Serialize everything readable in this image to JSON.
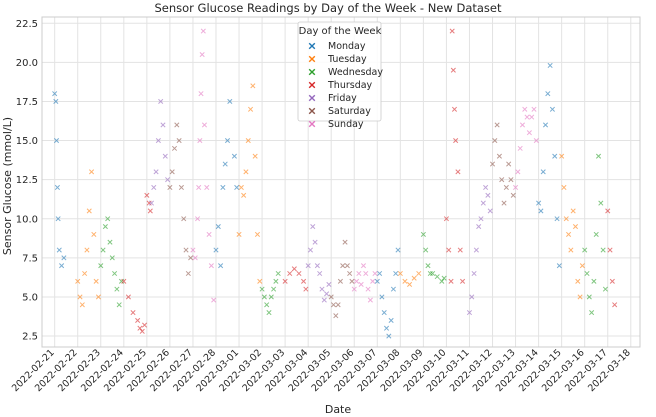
{
  "chart_data": {
    "type": "scatter",
    "marker": "x",
    "title": "Sensor Glucose Readings by Day of the Week - New Dataset",
    "xlabel": "Date",
    "ylabel": "Sensor Glucose (mmol/L)",
    "grid": true,
    "legend_title": "Day of the Week",
    "legend_position": "top-center",
    "x_range": [
      -0.55,
      25.4
    ],
    "ylim": [
      1.8,
      22.9
    ],
    "y_ticks": [
      2.5,
      5.0,
      7.5,
      10.0,
      12.5,
      15.0,
      17.5,
      20.0,
      22.5
    ],
    "x_tick_labels": [
      "2022-02-21",
      "2022-02-22",
      "2022-02-23",
      "2022-02-24",
      "2022-02-25",
      "2022-02-26",
      "2022-02-27",
      "2022-02-28",
      "2022-03-01",
      "2022-03-02",
      "2022-03-03",
      "2022-03-04",
      "2022-03-05",
      "2022-03-06",
      "2022-03-07",
      "2022-03-08",
      "2022-03-09",
      "2022-03-10",
      "2022-03-11",
      "2022-03-12",
      "2022-03-13",
      "2022-03-14",
      "2022-03-15",
      "2022-03-16",
      "2022-03-17",
      "2022-03-18"
    ],
    "series": [
      {
        "name": "Monday",
        "color": "#1f77b4",
        "days": [
          0,
          7,
          14,
          21
        ],
        "points": [
          [
            0.0,
            18.0
          ],
          [
            0.05,
            17.5
          ],
          [
            0.08,
            15.0
          ],
          [
            0.12,
            12.0
          ],
          [
            0.15,
            10.0
          ],
          [
            0.2,
            8.0
          ],
          [
            0.3,
            7.0
          ],
          [
            0.4,
            7.5
          ],
          [
            7.0,
            8.0
          ],
          [
            7.1,
            9.5
          ],
          [
            7.2,
            7.0
          ],
          [
            7.3,
            12.0
          ],
          [
            7.4,
            13.5
          ],
          [
            7.5,
            15.0
          ],
          [
            7.6,
            17.5
          ],
          [
            7.8,
            14.0
          ],
          [
            7.9,
            12.0
          ],
          [
            14.0,
            6.0
          ],
          [
            14.1,
            6.5
          ],
          [
            14.2,
            5.0
          ],
          [
            14.3,
            4.0
          ],
          [
            14.4,
            3.0
          ],
          [
            14.5,
            2.5
          ],
          [
            14.6,
            3.5
          ],
          [
            14.7,
            5.5
          ],
          [
            14.8,
            6.5
          ],
          [
            14.9,
            8.0
          ],
          [
            21.0,
            11.0
          ],
          [
            21.1,
            10.5
          ],
          [
            21.2,
            13.0
          ],
          [
            21.3,
            16.0
          ],
          [
            21.4,
            18.0
          ],
          [
            21.5,
            19.8
          ],
          [
            21.6,
            17.0
          ],
          [
            21.7,
            14.0
          ],
          [
            21.8,
            10.0
          ],
          [
            21.9,
            7.0
          ]
        ]
      },
      {
        "name": "Tuesday",
        "color": "#ff7f0e",
        "days": [
          1,
          8,
          15,
          22
        ],
        "points": [
          [
            1.0,
            6.0
          ],
          [
            1.1,
            5.0
          ],
          [
            1.2,
            4.5
          ],
          [
            1.3,
            6.5
          ],
          [
            1.4,
            8.0
          ],
          [
            1.5,
            10.5
          ],
          [
            1.6,
            13.0
          ],
          [
            1.7,
            9.0
          ],
          [
            1.8,
            6.0
          ],
          [
            1.9,
            5.0
          ],
          [
            8.0,
            9.0
          ],
          [
            8.1,
            12.0
          ],
          [
            8.2,
            11.5
          ],
          [
            8.3,
            13.0
          ],
          [
            8.4,
            15.0
          ],
          [
            8.5,
            17.0
          ],
          [
            8.6,
            18.5
          ],
          [
            8.7,
            14.0
          ],
          [
            8.8,
            9.0
          ],
          [
            8.9,
            6.0
          ],
          [
            15.0,
            6.5
          ],
          [
            15.2,
            6.0
          ],
          [
            15.4,
            5.8
          ],
          [
            15.6,
            6.2
          ],
          [
            15.8,
            6.5
          ],
          [
            22.0,
            14.0
          ],
          [
            22.1,
            12.0
          ],
          [
            22.2,
            10.0
          ],
          [
            22.3,
            9.0
          ],
          [
            22.4,
            8.0
          ],
          [
            22.5,
            10.5
          ],
          [
            22.6,
            9.5
          ],
          [
            22.7,
            6.0
          ],
          [
            22.8,
            5.0
          ],
          [
            22.9,
            7.0
          ]
        ]
      },
      {
        "name": "Wednesday",
        "color": "#2ca02c",
        "days": [
          2,
          9,
          16,
          23
        ],
        "points": [
          [
            2.0,
            7.0
          ],
          [
            2.1,
            8.0
          ],
          [
            2.2,
            9.5
          ],
          [
            2.3,
            10.0
          ],
          [
            2.4,
            8.5
          ],
          [
            2.5,
            7.5
          ],
          [
            2.6,
            6.5
          ],
          [
            2.7,
            5.5
          ],
          [
            2.8,
            4.5
          ],
          [
            2.9,
            6.0
          ],
          [
            9.0,
            5.5
          ],
          [
            9.1,
            5.0
          ],
          [
            9.2,
            4.5
          ],
          [
            9.3,
            4.0
          ],
          [
            9.4,
            5.0
          ],
          [
            9.5,
            5.5
          ],
          [
            9.6,
            6.0
          ],
          [
            9.7,
            6.5
          ],
          [
            16.0,
            9.0
          ],
          [
            16.1,
            8.0
          ],
          [
            16.2,
            7.0
          ],
          [
            16.3,
            6.5
          ],
          [
            16.4,
            6.5
          ],
          [
            16.6,
            6.3
          ],
          [
            16.8,
            6.0
          ],
          [
            16.9,
            6.2
          ],
          [
            23.0,
            8.0
          ],
          [
            23.1,
            6.5
          ],
          [
            23.2,
            5.0
          ],
          [
            23.3,
            4.0
          ],
          [
            23.4,
            6.0
          ],
          [
            23.5,
            9.0
          ],
          [
            23.6,
            14.0
          ],
          [
            23.7,
            11.0
          ],
          [
            23.8,
            8.0
          ],
          [
            23.9,
            5.5
          ]
        ]
      },
      {
        "name": "Thursday",
        "color": "#d62728",
        "days": [
          3,
          10,
          17,
          24
        ],
        "points": [
          [
            3.0,
            6.0
          ],
          [
            3.2,
            5.0
          ],
          [
            3.4,
            4.0
          ],
          [
            3.6,
            3.5
          ],
          [
            3.7,
            3.0
          ],
          [
            3.8,
            2.8
          ],
          [
            3.9,
            3.2
          ],
          [
            4.0,
            11.5
          ],
          [
            4.1,
            11.0
          ],
          [
            4.15,
            10.5
          ],
          [
            10.0,
            6.0
          ],
          [
            10.2,
            6.5
          ],
          [
            10.4,
            6.8
          ],
          [
            10.6,
            6.5
          ],
          [
            10.8,
            6.0
          ],
          [
            10.9,
            5.5
          ],
          [
            17.0,
            10.0
          ],
          [
            17.1,
            8.0
          ],
          [
            17.2,
            6.0
          ],
          [
            17.25,
            22.0
          ],
          [
            17.3,
            19.5
          ],
          [
            17.35,
            17.0
          ],
          [
            17.4,
            15.0
          ],
          [
            17.5,
            13.0
          ],
          [
            17.6,
            8.0
          ],
          [
            17.7,
            6.0
          ],
          [
            24.0,
            10.5
          ],
          [
            24.1,
            8.0
          ],
          [
            24.2,
            6.0
          ],
          [
            24.3,
            4.5
          ]
        ]
      },
      {
        "name": "Friday",
        "color": "#9467bd",
        "days": [
          4,
          11,
          18
        ],
        "points": [
          [
            4.2,
            11.0
          ],
          [
            4.3,
            12.0
          ],
          [
            4.4,
            13.0
          ],
          [
            4.5,
            15.0
          ],
          [
            4.6,
            17.5
          ],
          [
            4.7,
            16.0
          ],
          [
            4.8,
            14.0
          ],
          [
            4.9,
            12.5
          ],
          [
            11.0,
            7.0
          ],
          [
            11.1,
            8.0
          ],
          [
            11.2,
            9.5
          ],
          [
            11.3,
            8.5
          ],
          [
            11.4,
            7.0
          ],
          [
            11.5,
            6.5
          ],
          [
            11.6,
            5.5
          ],
          [
            11.7,
            4.8
          ],
          [
            11.8,
            5.2
          ],
          [
            11.9,
            5.8
          ],
          [
            18.0,
            4.0
          ],
          [
            18.1,
            5.0
          ],
          [
            18.2,
            6.5
          ],
          [
            18.3,
            8.0
          ],
          [
            18.4,
            9.5
          ],
          [
            18.5,
            10.0
          ],
          [
            18.6,
            11.0
          ],
          [
            18.7,
            12.0
          ],
          [
            18.8,
            11.5
          ],
          [
            18.9,
            10.5
          ]
        ]
      },
      {
        "name": "Saturday",
        "color": "#8c564b",
        "days": [
          5,
          12,
          19
        ],
        "points": [
          [
            5.0,
            12.0
          ],
          [
            5.1,
            13.0
          ],
          [
            5.2,
            14.5
          ],
          [
            5.3,
            16.0
          ],
          [
            5.4,
            15.0
          ],
          [
            5.5,
            12.0
          ],
          [
            5.6,
            10.0
          ],
          [
            5.7,
            8.0
          ],
          [
            5.8,
            6.5
          ],
          [
            5.9,
            7.5
          ],
          [
            12.0,
            5.0
          ],
          [
            12.1,
            4.5
          ],
          [
            12.2,
            3.8
          ],
          [
            12.3,
            4.5
          ],
          [
            12.4,
            6.0
          ],
          [
            12.5,
            7.0
          ],
          [
            12.6,
            8.5
          ],
          [
            12.7,
            7.0
          ],
          [
            12.8,
            6.5
          ],
          [
            12.9,
            6.0
          ],
          [
            19.0,
            13.5
          ],
          [
            19.1,
            15.0
          ],
          [
            19.2,
            16.0
          ],
          [
            19.3,
            14.0
          ],
          [
            19.4,
            12.5
          ],
          [
            19.5,
            11.0
          ],
          [
            19.6,
            12.0
          ],
          [
            19.7,
            13.5
          ],
          [
            19.8,
            12.5
          ],
          [
            19.9,
            11.5
          ]
        ]
      },
      {
        "name": "Sunday",
        "color": "#e377c2",
        "days": [
          6,
          13,
          20
        ],
        "points": [
          [
            6.0,
            8.0
          ],
          [
            6.1,
            7.5
          ],
          [
            6.2,
            10.0
          ],
          [
            6.25,
            12.0
          ],
          [
            6.3,
            15.0
          ],
          [
            6.35,
            18.0
          ],
          [
            6.4,
            20.5
          ],
          [
            6.45,
            22.0
          ],
          [
            6.5,
            16.0
          ],
          [
            6.6,
            12.0
          ],
          [
            6.7,
            9.0
          ],
          [
            6.8,
            7.0
          ],
          [
            6.9,
            4.8
          ],
          [
            13.0,
            5.5
          ],
          [
            13.1,
            6.0
          ],
          [
            13.2,
            6.5
          ],
          [
            13.3,
            5.8
          ],
          [
            13.4,
            7.0
          ],
          [
            13.5,
            6.5
          ],
          [
            13.6,
            5.5
          ],
          [
            13.7,
            4.8
          ],
          [
            13.8,
            6.0
          ],
          [
            13.9,
            6.5
          ],
          [
            20.0,
            12.0
          ],
          [
            20.1,
            13.0
          ],
          [
            20.2,
            14.5
          ],
          [
            20.3,
            16.0
          ],
          [
            20.4,
            17.0
          ],
          [
            20.5,
            16.5
          ],
          [
            20.6,
            15.5
          ],
          [
            20.7,
            16.5
          ],
          [
            20.8,
            17.0
          ],
          [
            20.9,
            15.0
          ]
        ]
      }
    ]
  }
}
